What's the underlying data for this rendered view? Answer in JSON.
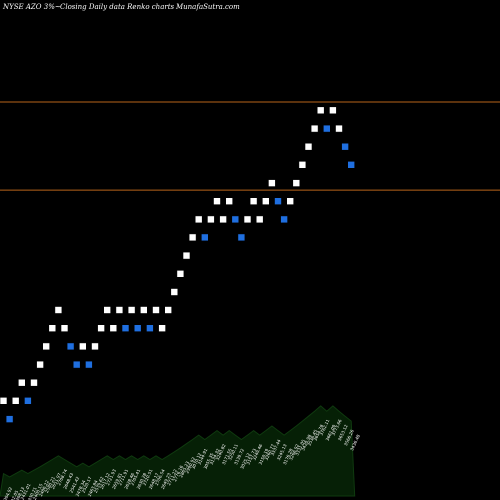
{
  "header": {
    "symbol": "NYSE AZO",
    "change": "3%~",
    "description": "Closing Daily data  Renko  charts",
    "site": "MunafaSutra.com"
  },
  "colors": {
    "background": "#000000",
    "up_brick": "#ffffff",
    "down_brick": "#1f6fe0",
    "brick_outline": "#000000",
    "level_line": "#b8641a",
    "volume_fill": "#062006",
    "volume_stroke": "#0f3a0f",
    "volume_label": "#ffffff"
  },
  "chart_data": {
    "type": "renko",
    "brick_size_pct": 3,
    "price_range": [
      2100,
      4500
    ],
    "levels": [
      3811,
      3302
    ],
    "bricks": [
      {
        "price": 2343,
        "dir": "up"
      },
      {
        "price": 2274,
        "dir": "down"
      },
      {
        "price": 2343,
        "dir": "up"
      },
      {
        "price": 2413,
        "dir": "up"
      },
      {
        "price": 2343,
        "dir": "down"
      },
      {
        "price": 2413,
        "dir": "up"
      },
      {
        "price": 2485,
        "dir": "up"
      },
      {
        "price": 2560,
        "dir": "up"
      },
      {
        "price": 2637,
        "dir": "up"
      },
      {
        "price": 2716,
        "dir": "up"
      },
      {
        "price": 2637,
        "dir": "up"
      },
      {
        "price": 2560,
        "dir": "down"
      },
      {
        "price": 2485,
        "dir": "down"
      },
      {
        "price": 2560,
        "dir": "up"
      },
      {
        "price": 2485,
        "dir": "down"
      },
      {
        "price": 2560,
        "dir": "up"
      },
      {
        "price": 2637,
        "dir": "up"
      },
      {
        "price": 2716,
        "dir": "up"
      },
      {
        "price": 2637,
        "dir": "up"
      },
      {
        "price": 2716,
        "dir": "up"
      },
      {
        "price": 2637,
        "dir": "down"
      },
      {
        "price": 2716,
        "dir": "up"
      },
      {
        "price": 2637,
        "dir": "down"
      },
      {
        "price": 2716,
        "dir": "up"
      },
      {
        "price": 2637,
        "dir": "down"
      },
      {
        "price": 2716,
        "dir": "up"
      },
      {
        "price": 2637,
        "dir": "up"
      },
      {
        "price": 2716,
        "dir": "up"
      },
      {
        "price": 2797,
        "dir": "up"
      },
      {
        "price": 2881,
        "dir": "up"
      },
      {
        "price": 2968,
        "dir": "up"
      },
      {
        "price": 3057,
        "dir": "up"
      },
      {
        "price": 3148,
        "dir": "up"
      },
      {
        "price": 3057,
        "dir": "down"
      },
      {
        "price": 3148,
        "dir": "up"
      },
      {
        "price": 3243,
        "dir": "up"
      },
      {
        "price": 3148,
        "dir": "up"
      },
      {
        "price": 3243,
        "dir": "up"
      },
      {
        "price": 3148,
        "dir": "down"
      },
      {
        "price": 3057,
        "dir": "down"
      },
      {
        "price": 3148,
        "dir": "up"
      },
      {
        "price": 3243,
        "dir": "up"
      },
      {
        "price": 3148,
        "dir": "up"
      },
      {
        "price": 3243,
        "dir": "up"
      },
      {
        "price": 3340,
        "dir": "up"
      },
      {
        "price": 3243,
        "dir": "down"
      },
      {
        "price": 3148,
        "dir": "down"
      },
      {
        "price": 3243,
        "dir": "up"
      },
      {
        "price": 3340,
        "dir": "up"
      },
      {
        "price": 3441,
        "dir": "up"
      },
      {
        "price": 3544,
        "dir": "up"
      },
      {
        "price": 3650,
        "dir": "up"
      },
      {
        "price": 3760,
        "dir": "up"
      },
      {
        "price": 3650,
        "dir": "down"
      },
      {
        "price": 3760,
        "dir": "up"
      },
      {
        "price": 3650,
        "dir": "up"
      },
      {
        "price": 3544,
        "dir": "down"
      },
      {
        "price": 3441,
        "dir": "down"
      }
    ],
    "volume_labels": [
      "2394.92",
      "2292.05",
      "2398.13",
      "2431.01",
      "2330.21",
      "2400.15",
      "2486.22",
      "2580.21",
      "2651.97",
      "2708.74",
      "2648.43",
      "2541.42",
      "2478.34",
      "2520.17",
      "2463.84",
      "2539.62",
      "2617.12",
      "2721.93",
      "2659.81",
      "2711.91",
      "2628.46",
      "2705.41",
      "2630.28",
      "2720.51",
      "2648.17",
      "2706.54",
      "2649.23",
      "2711.22",
      "2776.16",
      "2865.23",
      "2990.92",
      "3070.12",
      "3144.91",
      "3055.35",
      "3134.32",
      "3240.82",
      "3171.55",
      "3250.11",
      "3139.72",
      "3025.12",
      "3157.73",
      "3249.46",
      "3150.19",
      "3260.77",
      "3337.44",
      "3245.13",
      "3176.28",
      "3266.92",
      "3331.05",
      "3420.98",
      "3536.45",
      "3654.78",
      "3762.11",
      "3661.09",
      "3773.66",
      "3653.12",
      "3566.26",
      "3436.48"
    ]
  }
}
